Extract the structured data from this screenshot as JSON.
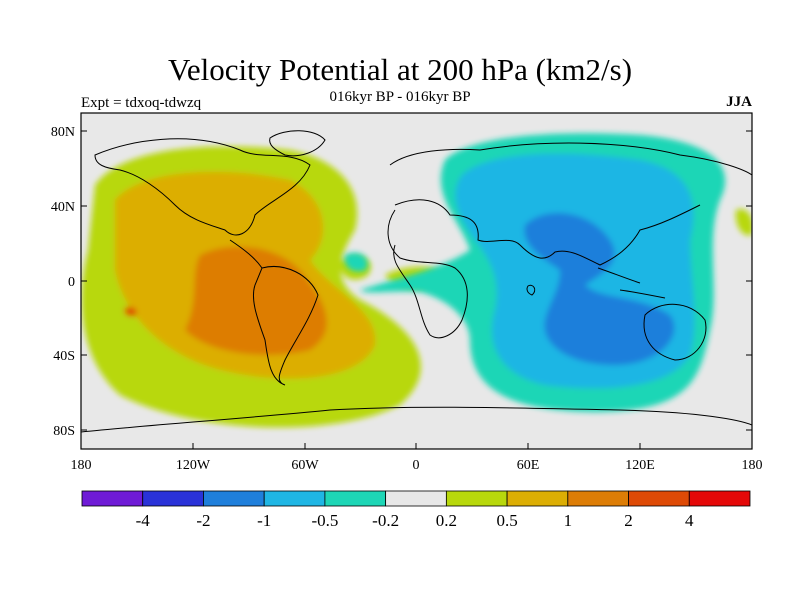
{
  "header": {
    "title": "Velocity Potential at 200 hPa (km2/s)",
    "subtitle": "016kyr BP - 016kyr BP",
    "expt": "Expt = tdxoq-tdwzq",
    "season": "JJA"
  },
  "map": {
    "lat_ticks": [
      "80N",
      "40N",
      "0",
      "40S",
      "80S"
    ],
    "lon_ticks": [
      "180",
      "120W",
      "60W",
      "0",
      "60E",
      "120E",
      "180"
    ]
  },
  "colorbar": {
    "colors": [
      "#6f1bd6",
      "#2a32d8",
      "#1f7fdb",
      "#1fb6e4",
      "#1ed6b6",
      "#e8e8e8",
      "#b8d80c",
      "#dcae04",
      "#dd7d06",
      "#de4a06",
      "#e40808"
    ],
    "labels": [
      "-4",
      "-2",
      "-1",
      "-0.5",
      "-0.2",
      "0.2",
      "0.5",
      "1",
      "2",
      "4"
    ]
  }
}
